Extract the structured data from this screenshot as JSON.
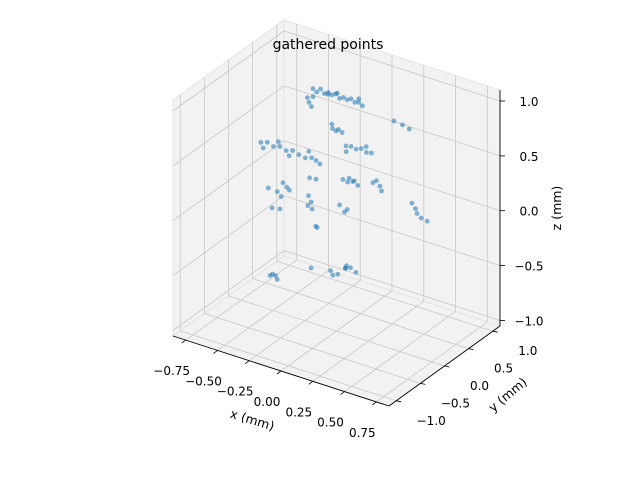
{
  "chart_data": {
    "type": "scatter",
    "projection": "3d",
    "title": "gathered points",
    "xlabel": "x (mm)",
    "ylabel": "y (mm)",
    "zlabel": "z (mm)",
    "xlim": [
      -0.85,
      0.85
    ],
    "ylim": [
      -1.15,
      1.15
    ],
    "zlim": [
      -1.05,
      1.1
    ],
    "xticks": [
      -0.75,
      -0.5,
      -0.25,
      0.0,
      0.25,
      0.5,
      0.75
    ],
    "xtick_labels": [
      "−0.75",
      "−0.50",
      "−0.25",
      "0.00",
      "0.25",
      "0.50",
      "0.75"
    ],
    "yticks": [
      -1.0,
      -0.5,
      0.0,
      0.5,
      1.0
    ],
    "ytick_labels": [
      "−1.0",
      "−0.5",
      "0.0",
      "0.5",
      "1.0"
    ],
    "zticks": [
      -1.0,
      -0.5,
      0.0,
      0.5,
      1.0
    ],
    "ztick_labels": [
      "−1.0",
      "−0.5",
      "0.0",
      "0.5",
      "1.0"
    ],
    "grid": true,
    "marker_color": "#1f77b4",
    "pane_color": "#f2f2f2",
    "grid_color": "#c8c8c8",
    "points": [
      [
        -0.3,
        0.3,
        0.95
      ],
      [
        -0.27,
        0.3,
        0.93
      ],
      [
        -0.24,
        0.3,
        0.97
      ],
      [
        -0.21,
        0.3,
        0.94
      ],
      [
        -0.18,
        0.3,
        0.96
      ],
      [
        -0.15,
        0.3,
        0.95
      ],
      [
        -0.12,
        0.3,
        0.97
      ],
      [
        -0.09,
        0.3,
        0.94
      ],
      [
        -0.06,
        0.3,
        0.96
      ],
      [
        -0.03,
        0.3,
        0.95
      ],
      [
        0.0,
        0.3,
        0.97
      ],
      [
        0.03,
        0.3,
        0.95
      ],
      [
        0.06,
        0.3,
        0.96
      ],
      [
        0.09,
        0.3,
        0.94
      ],
      [
        -0.28,
        0.25,
        0.9
      ],
      [
        -0.2,
        0.35,
        0.92
      ],
      [
        -0.1,
        0.28,
        0.99
      ],
      [
        0.05,
        0.33,
        0.98
      ],
      [
        -0.3,
        0.22,
        0.85
      ],
      [
        -0.28,
        0.22,
        0.82
      ],
      [
        -0.32,
        0.24,
        0.88
      ],
      [
        0.3,
        0.4,
        0.85
      ],
      [
        0.36,
        0.42,
        0.83
      ],
      [
        0.42,
        0.4,
        0.82
      ],
      [
        -0.1,
        0.18,
        0.7
      ],
      [
        -0.08,
        0.2,
        0.68
      ],
      [
        -0.06,
        0.2,
        0.7
      ],
      [
        -0.05,
        0.25,
        0.66
      ],
      [
        -0.12,
        0.22,
        0.72
      ],
      [
        -0.02,
        0.25,
        0.55
      ],
      [
        0.02,
        0.25,
        0.56
      ],
      [
        0.06,
        0.25,
        0.55
      ],
      [
        0.1,
        0.25,
        0.57
      ],
      [
        0.14,
        0.25,
        0.55
      ],
      [
        0.18,
        0.25,
        0.56
      ],
      [
        0.0,
        0.2,
        0.52
      ],
      [
        0.12,
        0.3,
        0.58
      ],
      [
        -0.55,
        -0.12,
        0.5
      ],
      [
        -0.5,
        -0.12,
        0.52
      ],
      [
        -0.45,
        -0.12,
        0.5
      ],
      [
        -0.4,
        -0.12,
        0.52
      ],
      [
        -0.35,
        -0.12,
        0.5
      ],
      [
        -0.3,
        -0.12,
        0.52
      ],
      [
        -0.25,
        -0.12,
        0.5
      ],
      [
        -0.2,
        -0.12,
        0.49
      ],
      [
        -0.15,
        -0.12,
        0.51
      ],
      [
        -0.52,
        -0.15,
        0.47
      ],
      [
        -0.42,
        -0.1,
        0.55
      ],
      [
        -0.32,
        -0.14,
        0.47
      ],
      [
        -0.18,
        -0.1,
        0.55
      ],
      [
        0.05,
        0.0,
        0.35
      ],
      [
        0.08,
        0.02,
        0.33
      ],
      [
        0.1,
        0.0,
        0.38
      ],
      [
        0.12,
        0.02,
        0.35
      ],
      [
        0.14,
        0.0,
        0.37
      ],
      [
        0.16,
        0.02,
        0.33
      ],
      [
        -0.18,
        0.05,
        0.42
      ],
      [
        -0.15,
        0.05,
        0.4
      ],
      [
        0.2,
        0.3,
        0.3
      ],
      [
        0.22,
        0.32,
        0.25
      ],
      [
        0.24,
        0.3,
        0.22
      ],
      [
        0.18,
        0.28,
        0.28
      ],
      [
        0.1,
        -0.2,
        0.2
      ],
      [
        0.14,
        -0.2,
        0.15
      ],
      [
        0.16,
        -0.2,
        0.18
      ],
      [
        -0.25,
        -0.45,
        0.35
      ],
      [
        -0.22,
        -0.45,
        0.32
      ],
      [
        -0.2,
        -0.45,
        0.3
      ],
      [
        -0.48,
        -0.15,
        0.12
      ],
      [
        -0.42,
        -0.12,
        0.1
      ],
      [
        -0.38,
        -0.15,
        0.08
      ],
      [
        -0.25,
        0.1,
        0.22
      ],
      [
        -0.2,
        0.0,
        0.05
      ],
      [
        -0.22,
        0.0,
        0.1
      ],
      [
        -0.2,
        0.02,
        -0.02
      ],
      [
        -0.18,
        0.05,
        0.25
      ],
      [
        0.48,
        0.3,
        0.2
      ],
      [
        0.5,
        0.32,
        0.15
      ],
      [
        0.52,
        0.3,
        0.12
      ],
      [
        0.56,
        0.28,
        0.1
      ],
      [
        0.6,
        0.3,
        0.08
      ],
      [
        -0.45,
        -0.15,
        -0.05
      ],
      [
        -0.4,
        -0.12,
        -0.05
      ],
      [
        0.28,
        -0.55,
        -0.2
      ],
      [
        0.32,
        -0.55,
        -0.18
      ],
      [
        0.35,
        -0.52,
        -0.22
      ],
      [
        0.3,
        -0.58,
        -0.16
      ],
      [
        0.26,
        -0.5,
        -0.22
      ],
      [
        0.15,
        -0.52,
        -0.28
      ],
      [
        0.18,
        -0.55,
        -0.3
      ],
      [
        0.2,
        -0.5,
        -0.3
      ],
      [
        -0.2,
        -0.85,
        -0.35
      ],
      [
        -0.18,
        -0.85,
        -0.33
      ],
      [
        -0.16,
        -0.84,
        -0.34
      ],
      [
        -0.14,
        -0.86,
        -0.36
      ],
      [
        -0.05,
        -0.3,
        -0.02
      ],
      [
        0.0,
        -0.4,
        0.02
      ],
      [
        -0.15,
        -0.2,
        0.1
      ],
      [
        -0.2,
        0.0,
        -0.55
      ]
    ]
  }
}
